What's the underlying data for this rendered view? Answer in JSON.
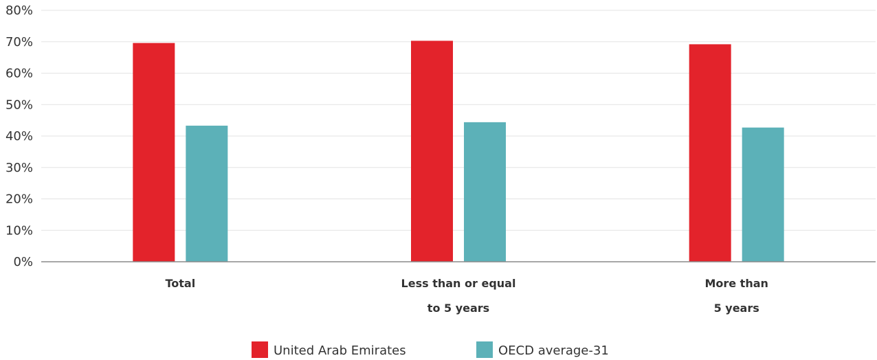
{
  "chart_data": {
    "type": "bar",
    "categories": [
      [
        "Total"
      ],
      [
        "Less than or equal",
        "to 5 years"
      ],
      [
        "More than",
        "5 years"
      ]
    ],
    "series": [
      {
        "name": "United Arab Emirates",
        "color": "#e3232b",
        "values": [
          69.6,
          70.3,
          69.2
        ]
      },
      {
        "name": "OECD average-31",
        "color": "#5cb1b8",
        "values": [
          43.3,
          44.4,
          42.7
        ]
      }
    ],
    "ylim": [
      0,
      80
    ],
    "yticks": [
      0,
      10,
      20,
      30,
      40,
      50,
      60,
      70,
      80
    ],
    "ytick_labels": [
      "0%",
      "10%",
      "20%",
      "30%",
      "40%",
      "50%",
      "60%",
      "70%",
      "80%"
    ],
    "grid": true,
    "legend": "bottom-center"
  }
}
